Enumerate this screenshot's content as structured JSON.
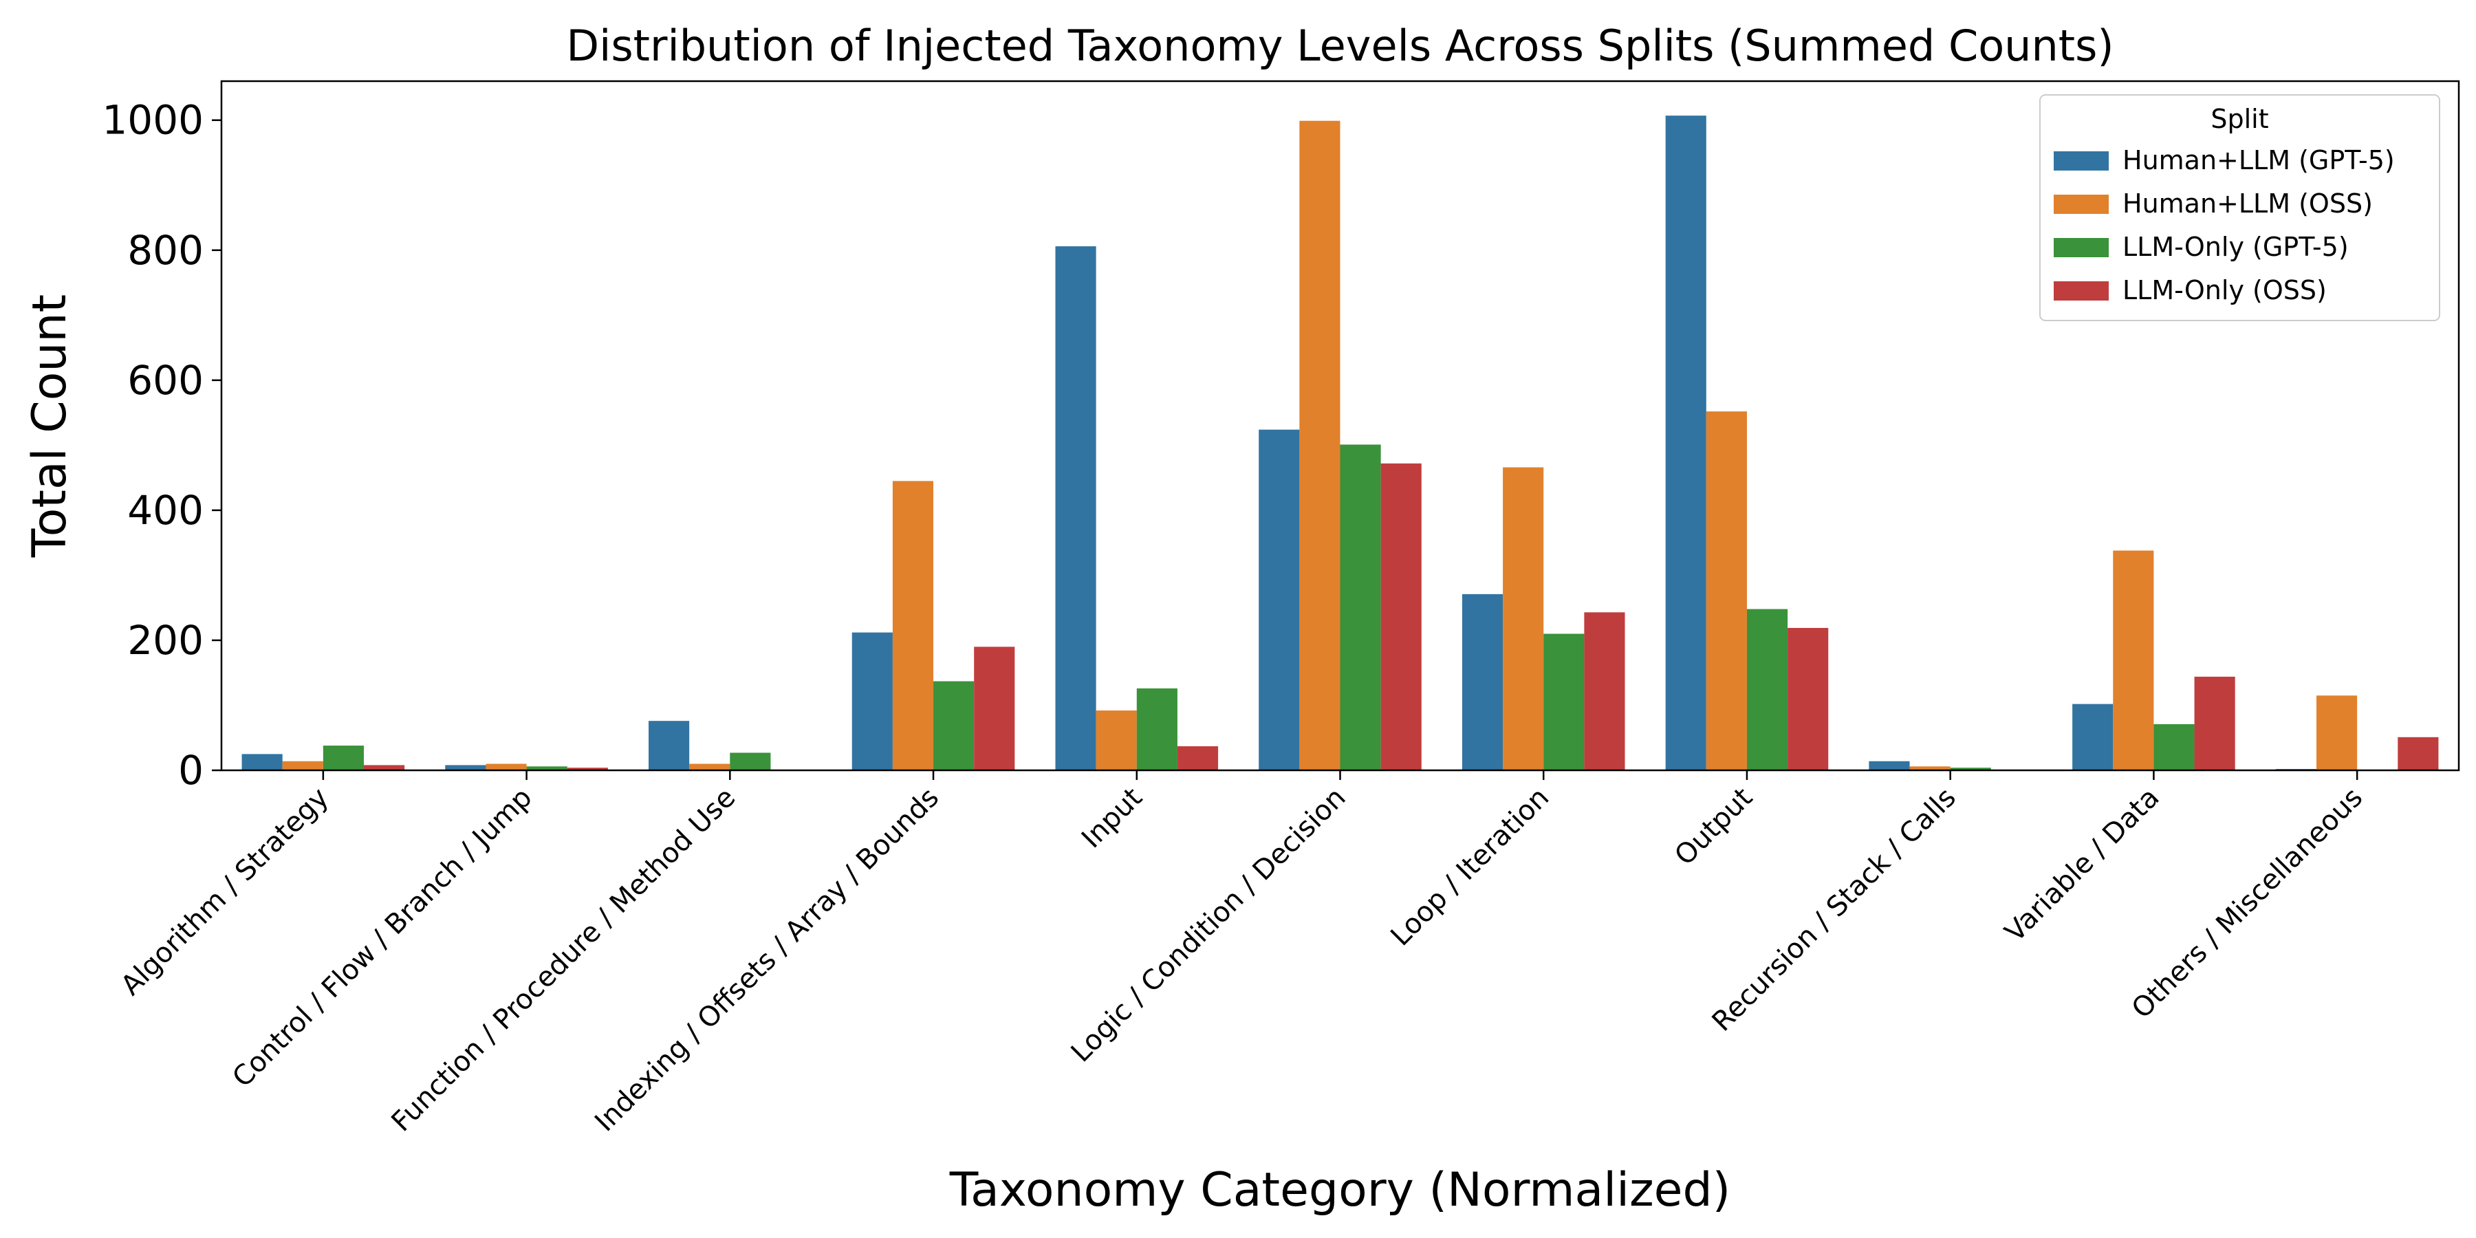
{
  "chart_data": {
    "type": "bar",
    "title": "Distribution of Injected Taxonomy Levels Across Splits (Summed Counts)",
    "xlabel": "Taxonomy Category (Normalized)",
    "ylabel": "Total Count",
    "ylim": [
      0,
      1060
    ],
    "yticks": [
      0,
      200,
      400,
      600,
      800,
      1000
    ],
    "categories": [
      "Algorithm / Strategy",
      "Control / Flow / Branch / Jump",
      "Function / Procedure / Method Use",
      "Indexing / Offsets / Array / Bounds",
      "Input",
      "Logic / Condition / Decision",
      "Loop / Iteration",
      "Output",
      "Recursion / Stack / Calls",
      "Variable / Data",
      "Others / Miscellaneous"
    ],
    "series": [
      {
        "name": "Human+LLM (GPT-5)",
        "color": "#3274a1",
        "values": [
          25,
          8,
          76,
          212,
          806,
          524,
          271,
          1007,
          14,
          102,
          2
        ]
      },
      {
        "name": "Human+LLM (OSS)",
        "color": "#e1812c",
        "values": [
          14,
          10,
          10,
          445,
          92,
          999,
          466,
          552,
          6,
          338,
          115
        ]
      },
      {
        "name": "LLM-Only (GPT-5)",
        "color": "#3a923a",
        "values": [
          38,
          6,
          27,
          137,
          126,
          501,
          210,
          248,
          4,
          71,
          0
        ]
      },
      {
        "name": "LLM-Only (OSS)",
        "color": "#c03d3e",
        "values": [
          8,
          4,
          0,
          190,
          37,
          472,
          243,
          219,
          0,
          144,
          51
        ]
      }
    ],
    "legend": {
      "title": "Split",
      "position": "top-right"
    },
    "grid": false
  }
}
